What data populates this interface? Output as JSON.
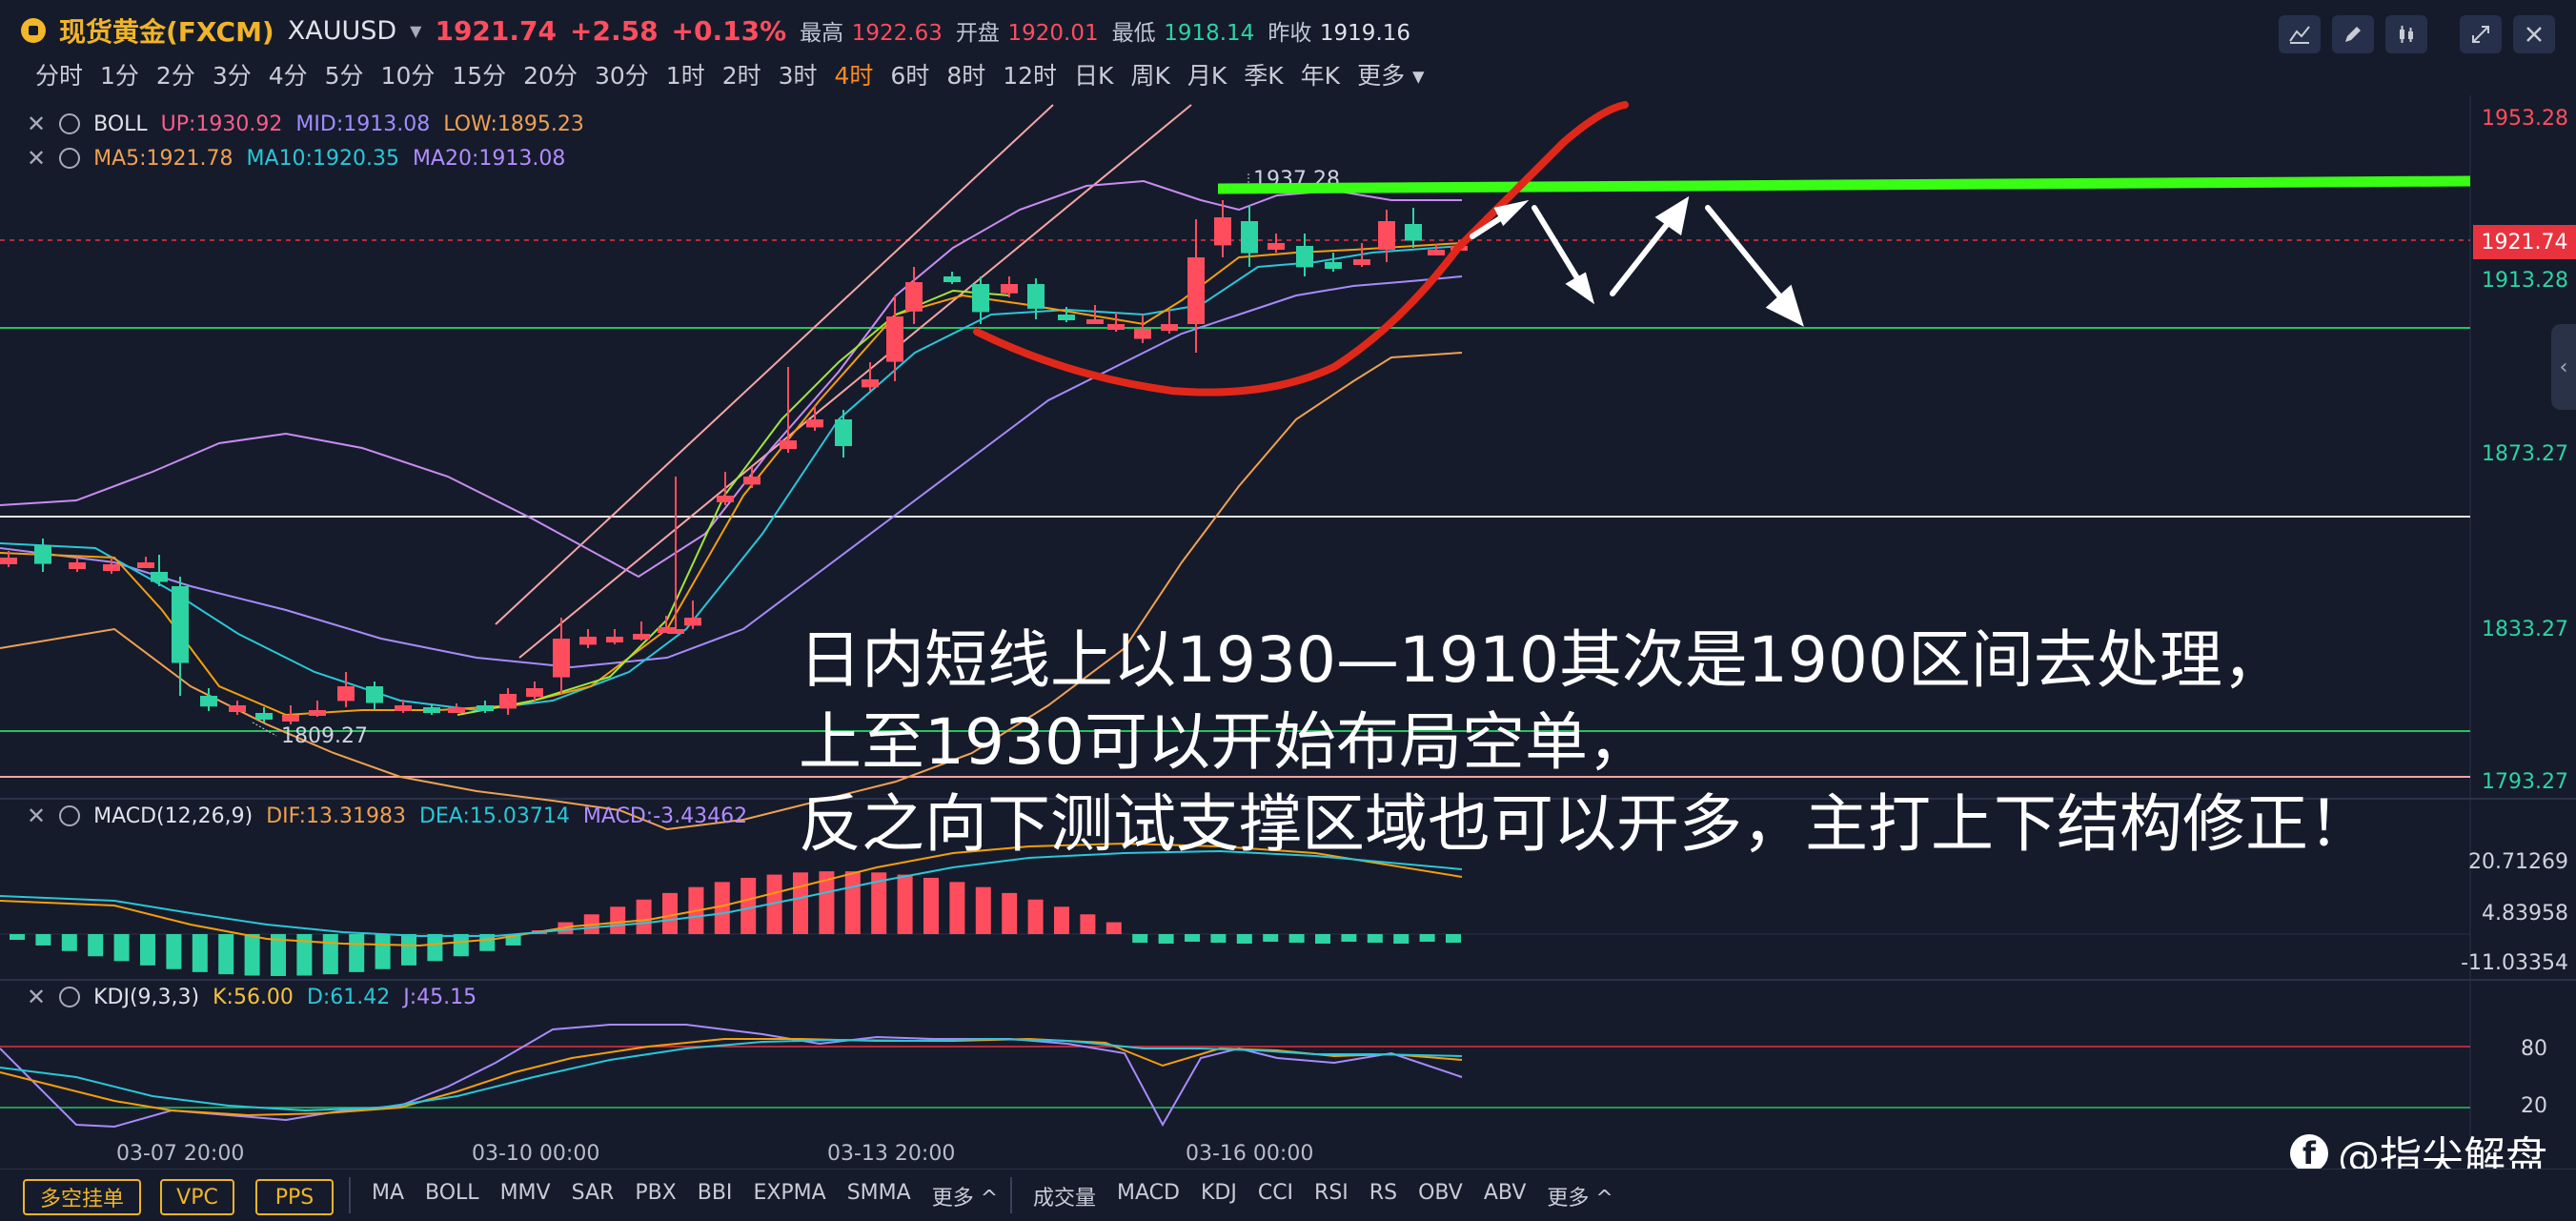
{
  "header": {
    "name": "现货黄金(FXCM)",
    "symbol": "XAUUSD",
    "price": "1921.74",
    "change": "+2.58",
    "change_pct": "+0.13%",
    "high_label": "最高",
    "high": "1922.63",
    "open_label": "开盘",
    "open": "1920.01",
    "low_label": "最低",
    "low": "1918.14",
    "prev_label": "昨收",
    "prev": "1919.16"
  },
  "timeframes": [
    "分时",
    "1分",
    "2分",
    "3分",
    "4分",
    "5分",
    "10分",
    "15分",
    "20分",
    "30分",
    "1时",
    "2时",
    "3时",
    "4时",
    "6时",
    "8时",
    "12时",
    "日K",
    "周K",
    "月K",
    "季K",
    "年K",
    "更多"
  ],
  "active_timeframe": "4时",
  "tools": [
    "line-tool-icon",
    "pen-icon",
    "candles-icon",
    "expand-icon",
    "close-icon"
  ],
  "boll": {
    "label": "BOLL",
    "up": "UP:1930.92",
    "mid": "MID:1913.08",
    "low": "LOW:1895.23"
  },
  "ma": {
    "ma5": "MA5:1921.78",
    "ma10": "MA10:1920.35",
    "ma20": "MA20:1913.08"
  },
  "macd": {
    "label": "MACD(12,26,9)",
    "dif": "DIF:13.31983",
    "dea": "DEA:15.03714",
    "macd": "MACD:-3.43462"
  },
  "kdj": {
    "label": "KDJ(9,3,3)",
    "k": "K:56.00",
    "d": "D:61.42",
    "j": "J:45.15"
  },
  "price_axis": [
    "1953.28",
    "1913.28",
    "1873.27",
    "1833.27",
    "1793.27"
  ],
  "current_price_tag": "1921.74",
  "macd_axis": [
    "20.71269",
    "4.83958",
    "-11.03354"
  ],
  "kdj_axis": [
    "80",
    "20"
  ],
  "chart_marks": {
    "high_mark": "1937.28",
    "low_mark": "1809.27"
  },
  "dates": [
    "03-07 20:00",
    "03-10 00:00",
    "03-13 20:00",
    "03-16 00:00"
  ],
  "annotation": {
    "line1": "日内短线上以1930—1910其次是1900区间去处理，",
    "line2": "上至1930可以开始布局空单，",
    "line3": "反之向下测试支撑区域也可以开多，主打上下结构修正！"
  },
  "bottom": {
    "buttons": [
      "多空挂单",
      "VPC",
      "PPS"
    ],
    "main_indicators": [
      "MA",
      "BOLL",
      "MMV",
      "SAR",
      "PBX",
      "BBI",
      "EXPMA",
      "SMMA",
      "更多"
    ],
    "sub_indicators": [
      "成交量",
      "MACD",
      "KDJ",
      "CCI",
      "RSI",
      "RS",
      "OBV",
      "ABV",
      "更多"
    ]
  },
  "watermark": "@指尖解盘",
  "colors": {
    "up": "#ff4d5e",
    "down": "#2ed3a3",
    "accent": "#f0b429",
    "bg": "#151b2b"
  }
}
